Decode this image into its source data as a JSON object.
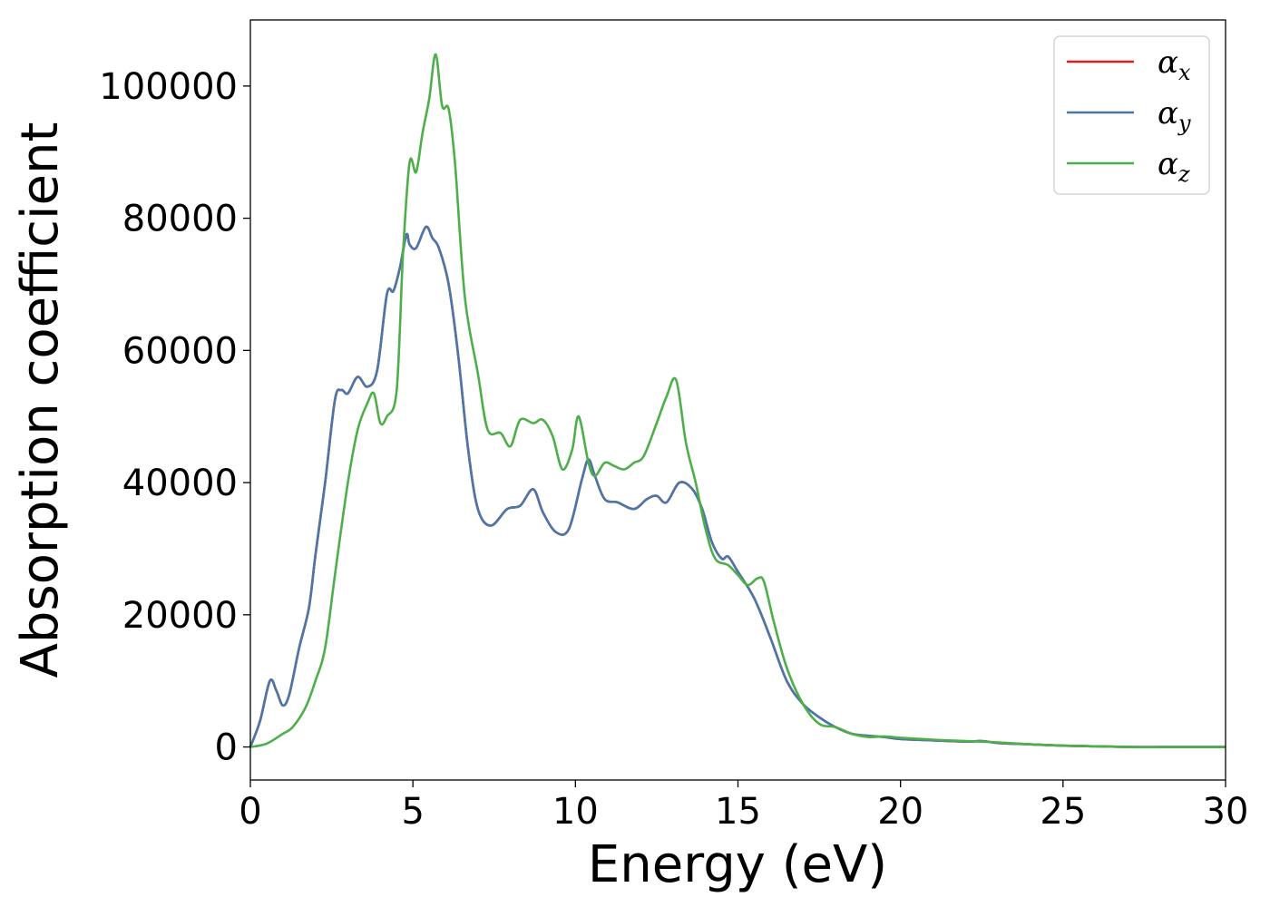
{
  "chart_data": {
    "type": "line",
    "title": "",
    "xlabel": "Energy (eV)",
    "ylabel": "Absorption coefficient",
    "xlim": [
      0,
      30
    ],
    "ylim": [
      -5000,
      110000
    ],
    "xticks": [
      0,
      5,
      10,
      15,
      20,
      25,
      30
    ],
    "xtick_labels": [
      "0",
      "5",
      "10",
      "15",
      "20",
      "25",
      "30"
    ],
    "yticks": [
      0,
      20000,
      40000,
      60000,
      80000,
      100000
    ],
    "ytick_labels": [
      "0",
      "20000",
      "40000",
      "60000",
      "80000",
      "100000"
    ],
    "grid": false,
    "legend_position": "top-right",
    "series": [
      {
        "name": "α",
        "subscript": "x",
        "color": "#e41a1c",
        "x": [
          0,
          0.3,
          0.6,
          0.8,
          1.0,
          1.2,
          1.5,
          1.8,
          2.0,
          2.3,
          2.6,
          2.8,
          3.0,
          3.3,
          3.6,
          3.9,
          4.2,
          4.4,
          4.6,
          4.8,
          4.9,
          5.1,
          5.4,
          5.6,
          5.8,
          6.1,
          6.4,
          6.7,
          7.0,
          7.4,
          7.9,
          8.3,
          8.7,
          9.0,
          9.4,
          9.8,
          10.2,
          10.4,
          10.6,
          10.9,
          11.3,
          11.8,
          12.2,
          12.5,
          12.8,
          13.2,
          13.6,
          13.9,
          14.2,
          14.5,
          14.7,
          15.0,
          15.5,
          16.0,
          16.5,
          17.0,
          17.5,
          18.0,
          18.5,
          19.0,
          19.5,
          20.0,
          21.0,
          22.0,
          22.5,
          23.0,
          24.0,
          25.0,
          26.0,
          27.0,
          28.0,
          29.0,
          30.0
        ],
        "y": [
          0,
          4000,
          10000,
          8500,
          6300,
          8000,
          15000,
          21000,
          29000,
          40000,
          52500,
          54000,
          53500,
          56000,
          54500,
          57000,
          68500,
          69000,
          72500,
          77500,
          76000,
          75500,
          78700,
          77000,
          75500,
          70000,
          59000,
          45000,
          36000,
          33500,
          36000,
          36500,
          39000,
          35500,
          32500,
          33000,
          40500,
          43500,
          41000,
          37500,
          37000,
          36000,
          37500,
          38000,
          37000,
          40000,
          39000,
          36000,
          31000,
          28500,
          28800,
          26500,
          22500,
          16500,
          10000,
          6500,
          4500,
          3000,
          2000,
          1700,
          1500,
          1200,
          1000,
          800,
          900,
          600,
          400,
          200,
          100,
          0,
          0,
          0,
          0
        ]
      },
      {
        "name": "α",
        "subscript": "y",
        "color": "#4a77aa",
        "x": [
          0,
          0.3,
          0.6,
          0.8,
          1.0,
          1.2,
          1.5,
          1.8,
          2.0,
          2.3,
          2.6,
          2.8,
          3.0,
          3.3,
          3.6,
          3.9,
          4.2,
          4.4,
          4.6,
          4.8,
          4.9,
          5.1,
          5.4,
          5.6,
          5.8,
          6.1,
          6.4,
          6.7,
          7.0,
          7.4,
          7.9,
          8.3,
          8.7,
          9.0,
          9.4,
          9.8,
          10.2,
          10.4,
          10.6,
          10.9,
          11.3,
          11.8,
          12.2,
          12.5,
          12.8,
          13.2,
          13.6,
          13.9,
          14.2,
          14.5,
          14.7,
          15.0,
          15.5,
          16.0,
          16.5,
          17.0,
          17.5,
          18.0,
          18.5,
          19.0,
          19.5,
          20.0,
          21.0,
          22.0,
          22.5,
          23.0,
          24.0,
          25.0,
          26.0,
          27.0,
          28.0,
          29.0,
          30.0
        ],
        "y": [
          0,
          4000,
          10000,
          8500,
          6300,
          8000,
          15000,
          21000,
          29000,
          40000,
          52500,
          54000,
          53500,
          56000,
          54500,
          57000,
          68500,
          69000,
          72500,
          77500,
          76000,
          75500,
          78700,
          77000,
          75500,
          70000,
          59000,
          45000,
          36000,
          33500,
          36000,
          36500,
          39000,
          35500,
          32500,
          33000,
          40500,
          43500,
          41000,
          37500,
          37000,
          36000,
          37500,
          38000,
          37000,
          40000,
          39000,
          36000,
          31000,
          28500,
          28800,
          26500,
          22500,
          16500,
          10000,
          6500,
          4500,
          3000,
          2000,
          1700,
          1500,
          1200,
          1000,
          800,
          900,
          600,
          400,
          200,
          100,
          0,
          0,
          0,
          0
        ]
      },
      {
        "name": "α",
        "subscript": "z",
        "color": "#4daf4a",
        "x": [
          0,
          0.5,
          1.0,
          1.3,
          1.7,
          2.0,
          2.3,
          2.6,
          3.0,
          3.3,
          3.6,
          3.8,
          4.0,
          4.2,
          4.5,
          4.7,
          4.9,
          5.1,
          5.3,
          5.5,
          5.7,
          5.9,
          6.1,
          6.3,
          6.6,
          7.0,
          7.3,
          7.7,
          8.0,
          8.3,
          8.7,
          9.0,
          9.3,
          9.6,
          9.9,
          10.1,
          10.4,
          10.6,
          10.9,
          11.2,
          11.5,
          11.8,
          12.1,
          12.5,
          12.8,
          13.1,
          13.4,
          13.7,
          14.0,
          14.3,
          14.7,
          15.0,
          15.3,
          15.6,
          15.8,
          16.1,
          16.5,
          17.0,
          17.5,
          18.0,
          18.5,
          19.0,
          19.5,
          20.0,
          21.0,
          22.0,
          23.0,
          24.0,
          25.0,
          26.0,
          27.0,
          28.0,
          29.0,
          30.0
        ],
        "y": [
          0,
          500,
          2000,
          3000,
          6000,
          10000,
          15000,
          26000,
          40000,
          48000,
          52000,
          53500,
          49000,
          50000,
          54000,
          75000,
          88500,
          87000,
          93000,
          98000,
          104800,
          97000,
          96500,
          88000,
          68000,
          56500,
          48000,
          47500,
          45500,
          49500,
          49000,
          49500,
          47000,
          42000,
          45000,
          50000,
          43000,
          41000,
          43000,
          42500,
          42000,
          43000,
          44000,
          49000,
          53000,
          55500,
          46000,
          40000,
          33000,
          28500,
          27500,
          26000,
          24500,
          25500,
          25000,
          19000,
          12000,
          6500,
          3500,
          3000,
          2000,
          1500,
          1600,
          1400,
          1100,
          900,
          700,
          400,
          200,
          100,
          0,
          0,
          0,
          0
        ]
      }
    ]
  }
}
